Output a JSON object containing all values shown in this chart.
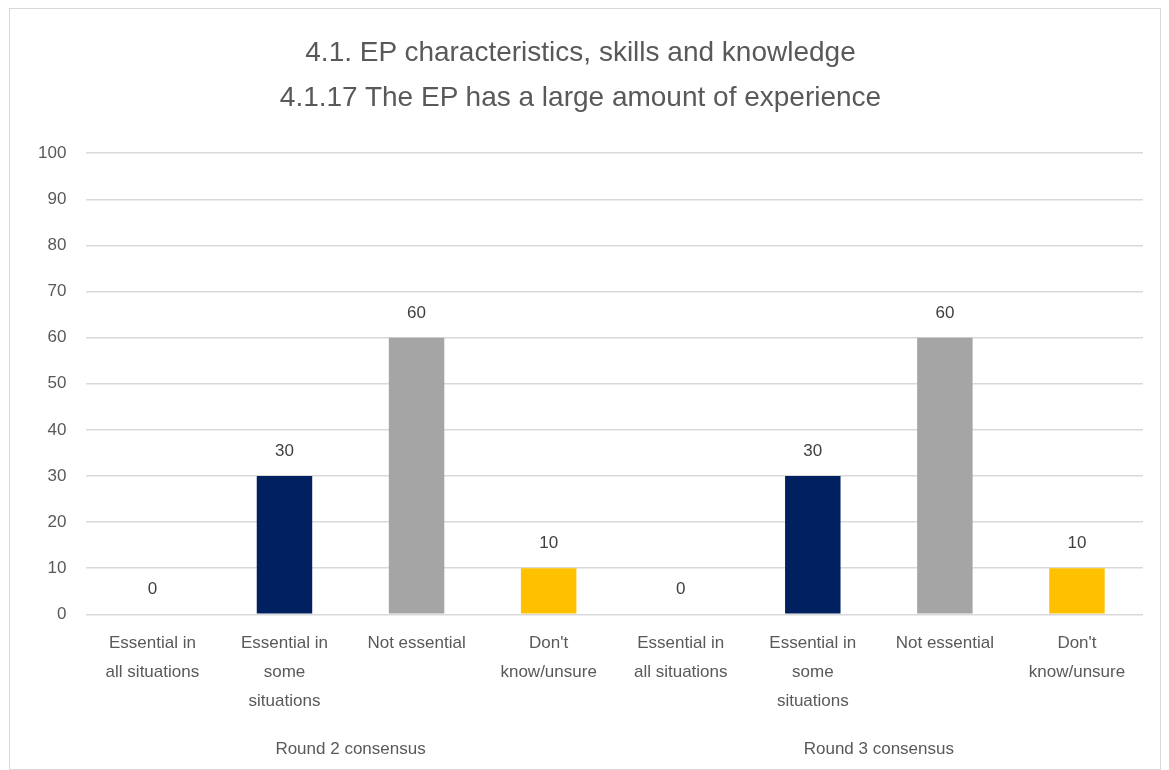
{
  "chart_data": {
    "type": "bar",
    "title": "4.1. EP characteristics, skills and knowledge",
    "subtitle": "4.1.17 The EP has a large amount of experience",
    "categories": [
      "Essential in all situations",
      "Essential in some situations",
      "Not essential",
      "Don't know/unsure",
      "Essential in all situations",
      "Essential in some situations",
      "Not essential",
      "Don't know/unsure"
    ],
    "values": [
      0,
      30,
      60,
      10,
      0,
      30,
      60,
      10
    ],
    "colors": [
      "#4472c4",
      "#002060",
      "#a5a5a5",
      "#ffc000",
      "#4472c4",
      "#002060",
      "#a5a5a5",
      "#ffc000"
    ],
    "ylim": [
      0,
      100
    ],
    "yticks": [
      0,
      10,
      20,
      30,
      40,
      50,
      60,
      70,
      80,
      90,
      100
    ],
    "annotations": [
      "Round 2 consensus",
      "Round 3 consensus"
    ],
    "data_labels": true,
    "grid": "y",
    "legend": false
  }
}
